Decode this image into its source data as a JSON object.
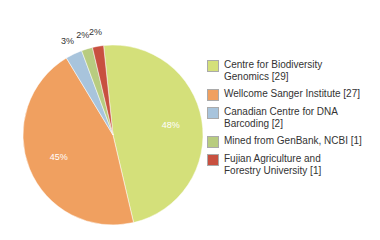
{
  "chart_data": {
    "type": "pie",
    "categories": [
      "Centre for Biodiversity\nGenomics [29]",
      "Wellcome Sanger Institute [27]",
      "Canadian Centre for DNA\nBarcoding [2]",
      "Mined from GenBank, NCBI [1]",
      "Fujian Agriculture and\nForestry University [1]"
    ],
    "values": [
      48,
      45,
      3,
      2,
      2
    ],
    "value_labels": [
      "48%",
      "45%",
      "3%",
      "2%",
      "2%"
    ],
    "colors": [
      "#d4e07a",
      "#f0a060",
      "#a8c4dc",
      "#b8cc80",
      "#c85040"
    ],
    "data_labels": true,
    "legend": "right"
  }
}
